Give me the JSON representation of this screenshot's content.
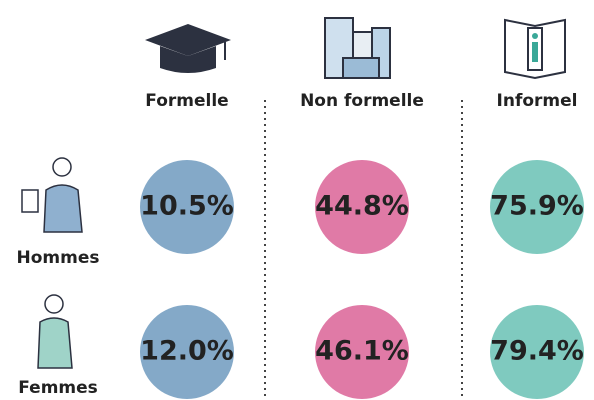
{
  "columns": [
    "Formelle",
    "Non formelle",
    "Informel"
  ],
  "rows": [
    {
      "label": "Hommes",
      "cells": [
        "10.5%",
        "44.8%",
        "75.9%"
      ]
    },
    {
      "label": "Femmes",
      "cells": [
        "12.0%",
        "46.1%",
        "79.4%"
      ]
    }
  ]
}
